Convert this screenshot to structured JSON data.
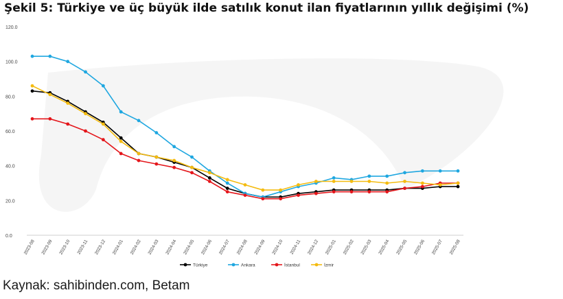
{
  "title": "Şekil 5: Türkiye ve üç büyük ilde satılık konut ilan fiyatlarının yıllık değişimi (%)",
  "source": "Kaynak: sahibinden.com, Betam",
  "chart_data": {
    "type": "line",
    "x": [
      "2023-08",
      "2023-09",
      "2023-10",
      "2023-11",
      "2023-12",
      "2024-01",
      "2024-02",
      "2024-03",
      "2024-04",
      "2024-05",
      "2024-06",
      "2024-07",
      "2024-08",
      "2024-09",
      "2024-10",
      "2024-11",
      "2024-12",
      "2025-01",
      "2025-02",
      "2025-03",
      "2025-04",
      "2025-05",
      "2025-06",
      "2025-07",
      "2025-08"
    ],
    "ylim": [
      0,
      120
    ],
    "yticks": [
      "0.0",
      "20.0",
      "40.0",
      "60.0",
      "80.0",
      "100.0",
      "120.0"
    ],
    "grid": false,
    "legend_position": "bottom",
    "series": [
      {
        "name": "Türkiye",
        "color": "#000000",
        "values": [
          83,
          82,
          77,
          71,
          65,
          56,
          47,
          45,
          42,
          39,
          33,
          27,
          24,
          22,
          22,
          24,
          25,
          26,
          26,
          26,
          26,
          27,
          27,
          28,
          28
        ]
      },
      {
        "name": "Ankara",
        "color": "#1fa7e0",
        "values": [
          103,
          103,
          100,
          94,
          86,
          71,
          66,
          59,
          51,
          45,
          37,
          30,
          24,
          22,
          25,
          28,
          30,
          33,
          32,
          34,
          34,
          36,
          37,
          37,
          37
        ]
      },
      {
        "name": "İstanbul",
        "color": "#e4161b",
        "values": [
          67,
          67,
          64,
          60,
          55,
          47,
          43,
          41,
          39,
          36,
          31,
          25,
          23,
          21,
          21,
          23,
          24,
          25,
          25,
          25,
          25,
          27,
          28,
          30,
          30
        ]
      },
      {
        "name": "İzmir",
        "color": "#f4bb10",
        "values": [
          86,
          81,
          76,
          70,
          64,
          54,
          47,
          45,
          43,
          39,
          36,
          32,
          29,
          26,
          26,
          29,
          31,
          31,
          31,
          31,
          30,
          31,
          30,
          29,
          30
        ]
      }
    ]
  }
}
